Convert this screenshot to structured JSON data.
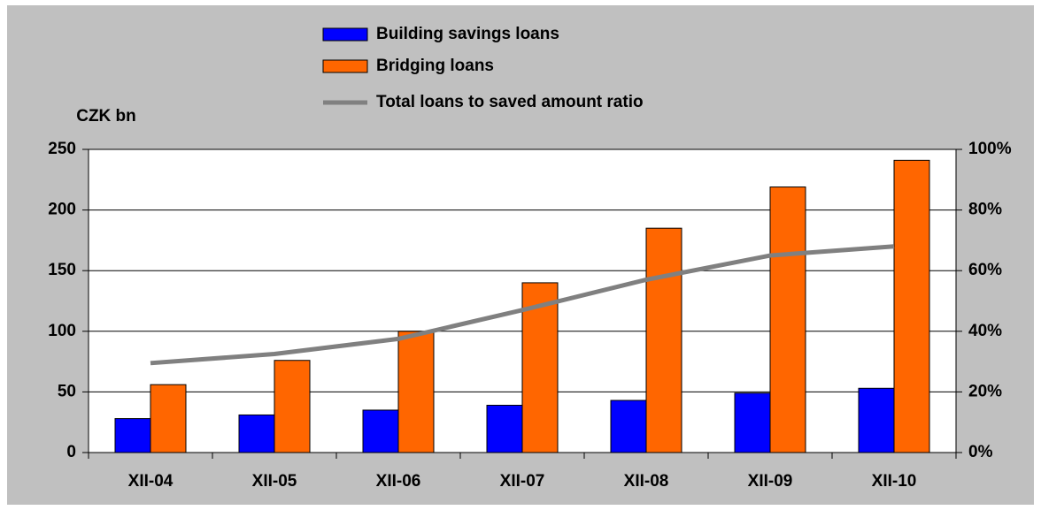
{
  "chart_data": {
    "type": "bar",
    "y_label": "CZK bn",
    "categories": [
      "XII-04",
      "XII-05",
      "XII-06",
      "XII-07",
      "XII-08",
      "XII-09",
      "XII-10"
    ],
    "series": [
      {
        "name": "Building savings loans",
        "color": "#0000ff",
        "type": "bar",
        "values": [
          28,
          31,
          35,
          39,
          43,
          49,
          53
        ]
      },
      {
        "name": "Bridging loans",
        "color": "#ff6600",
        "type": "bar",
        "values": [
          56,
          76,
          100,
          140,
          185,
          219,
          241
        ]
      },
      {
        "name": "Total loans to saved amount ratio",
        "color": "#808080",
        "type": "line",
        "axis": "y2",
        "values": [
          29.5,
          32.5,
          37.5,
          47,
          57,
          65,
          68
        ]
      }
    ],
    "ylim": [
      0,
      250
    ],
    "yticks": [
      0,
      50,
      100,
      150,
      200,
      250
    ],
    "y2lim": [
      0,
      100
    ],
    "y2ticks": [
      {
        "value": 0,
        "label": "0%"
      },
      {
        "value": 20,
        "label": "20%"
      },
      {
        "value": 40,
        "label": "40%"
      },
      {
        "value": 60,
        "label": "60%"
      },
      {
        "value": 80,
        "label": "80%"
      },
      {
        "value": 100,
        "label": "100%"
      }
    ],
    "grid": true
  }
}
